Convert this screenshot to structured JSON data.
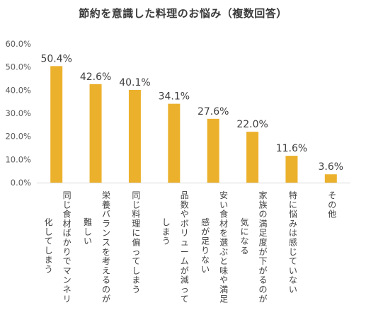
{
  "chart_data": {
    "type": "bar",
    "title": "節約を意識した料理のお悩み（複数回答）",
    "ylim": [
      0,
      60
    ],
    "yticks": [
      "0.0%",
      "10.0%",
      "20.0%",
      "30.0%",
      "40.0%",
      "50.0%",
      "60.0%"
    ],
    "grid": false,
    "legend": "none",
    "bar_color": "#ecb12c",
    "categories": [
      [
        "同じ食材ばかりでマンネリ",
        "化してしまう"
      ],
      [
        "栄養バランスを考えるのが",
        "難しい"
      ],
      [
        "同じ料理に偏ってしまう"
      ],
      [
        "品数やボリュームが減って",
        "しまう"
      ],
      [
        "安い食材を選ぶと味や満足",
        "感が足りない"
      ],
      [
        "家族の満足度が下がるのが",
        "気になる"
      ],
      [
        "特に悩みは感じていない"
      ],
      [
        "その他"
      ]
    ],
    "values": [
      50.4,
      42.6,
      40.1,
      34.1,
      27.6,
      22.0,
      11.6,
      3.6
    ],
    "value_labels": [
      "50.4%",
      "42.6%",
      "40.1%",
      "34.1%",
      "27.6%",
      "22.0%",
      "11.6%",
      "3.6%"
    ]
  }
}
